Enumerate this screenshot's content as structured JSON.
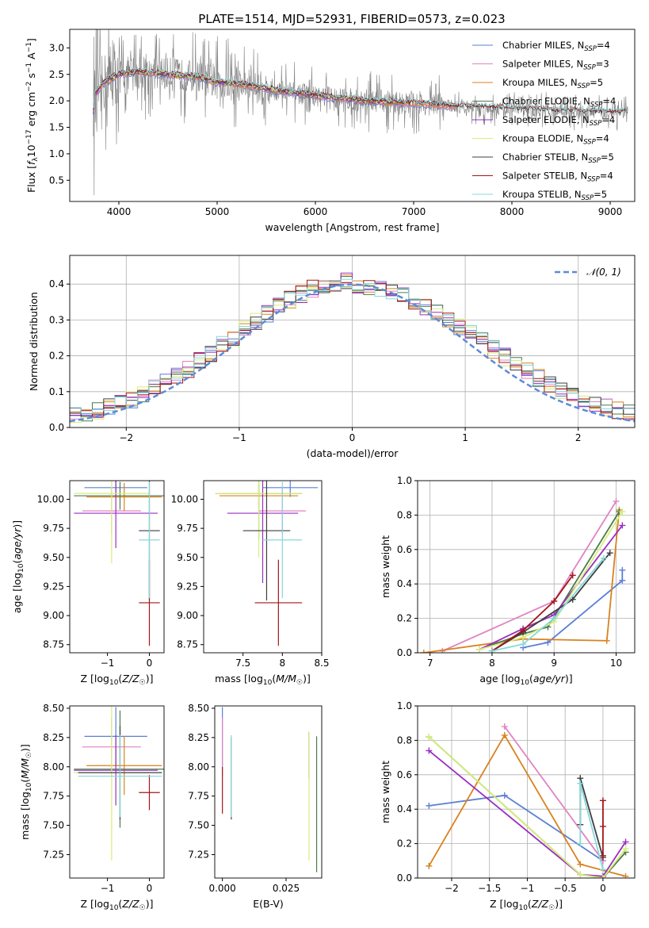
{
  "figure_title": "PLATE=1514, MJD=52931, FIBERID=0573, z=0.023",
  "colors": {
    "Chabrier MILES": "#5b7fd6",
    "Salpeter MILES": "#e083c0",
    "Kroupa MILES": "#d9821e",
    "Chabrier ELODIE": "#4c7a4c",
    "Salpeter ELODIE": "#9a2fc0",
    "Kroupa ELODIE": "#d7ee7a",
    "Chabrier STELIB": "#3f3f3f",
    "Salpeter STELIB": "#a4161a",
    "Kroupa STELIB": "#86d8da",
    "data": "#808080",
    "normal": "#5b8bd9"
  },
  "chart_data": [
    {
      "id": "spectrum",
      "type": "line",
      "title": "PLATE=1514, MJD=52931, FIBERID=0573, z=0.023",
      "xlabel": "wavelength [Angstrom, rest frame]",
      "ylabel": "Flux [f_λ 10^-17 erg cm^-2 s^-1 A^-1]",
      "xlim": [
        3500,
        9250
      ],
      "ylim": [
        0.1,
        3.35
      ],
      "xticks": [
        4000,
        5000,
        6000,
        7000,
        8000,
        9000
      ],
      "yticks": [
        0.5,
        1.0,
        1.5,
        2.0,
        2.5,
        3.0
      ],
      "grid": false,
      "legend_position": "top-right",
      "legend": [
        {
          "label": "Chabrier MILES, N",
          "sub": "SSP",
          "suffix": "=4"
        },
        {
          "label": "Salpeter MILES, N",
          "sub": "SSP",
          "suffix": "=3"
        },
        {
          "label": "Kroupa MILES, N",
          "sub": "SSP",
          "suffix": "=5"
        },
        {
          "label": "Chabrier ELODIE, N",
          "sub": "SSP",
          "suffix": "=4"
        },
        {
          "label": "Salpeter ELODIE, N",
          "sub": "SSP",
          "suffix": "=4"
        },
        {
          "label": "Kroupa ELODIE, N",
          "sub": "SSP",
          "suffix": "=4"
        },
        {
          "label": "Chabrier STELIB, N",
          "sub": "SSP",
          "suffix": "=5"
        },
        {
          "label": "Salpeter STELIB, N",
          "sub": "SSP",
          "suffix": "=4"
        },
        {
          "label": "Kroupa STELIB, N",
          "sub": "SSP",
          "suffix": "=5"
        }
      ],
      "model_continuum": [
        [
          3750,
          2.1
        ],
        [
          3850,
          2.35
        ],
        [
          4000,
          2.5
        ],
        [
          4200,
          2.55
        ],
        [
          4500,
          2.5
        ],
        [
          4800,
          2.45
        ],
        [
          5000,
          2.35
        ],
        [
          5300,
          2.3
        ],
        [
          5600,
          2.2
        ],
        [
          6000,
          2.1
        ],
        [
          6500,
          2.0
        ],
        [
          7000,
          1.95
        ],
        [
          7400,
          1.9
        ],
        [
          8000,
          1.85
        ],
        [
          8500,
          1.8
        ],
        [
          9000,
          1.78
        ]
      ]
    },
    {
      "id": "residuals",
      "type": "line",
      "xlabel": "(data-model)/error",
      "ylabel": "Normed distribution",
      "xlim": [
        -2.5,
        2.5
      ],
      "ylim": [
        0,
        0.48
      ],
      "xticks": [
        -2,
        -1,
        0,
        1,
        2
      ],
      "yticks": [
        0.0,
        0.1,
        0.2,
        0.3,
        0.4
      ],
      "grid": true,
      "legend_position": "top-right",
      "legend_label": "𝒩(0, 1)"
    },
    {
      "id": "age_vs_Z",
      "type": "scatter",
      "xlabel": "Z [log10(Z/Z☉)]",
      "ylabel": "age  [log10(age/yr)]",
      "xlim": [
        -1.9,
        0.35
      ],
      "ylim": [
        8.68,
        10.16
      ],
      "xticks": [
        -1,
        0
      ],
      "yticks": [
        8.75,
        9.0,
        9.25,
        9.5,
        9.75,
        10.0
      ],
      "grid": false,
      "points": [
        {
          "model": "Chabrier MILES",
          "x": -0.8,
          "xerr": 0.75,
          "y": 10.1,
          "yerr": 0.08
        },
        {
          "model": "Salpeter MILES",
          "x": -0.9,
          "xerr": 0.7,
          "y": 9.9,
          "yerr": 0.2
        },
        {
          "model": "Kroupa MILES",
          "x": -0.6,
          "xerr": 0.9,
          "y": 10.02,
          "yerr": 0.12
        },
        {
          "model": "Chabrier ELODIE",
          "x": -0.7,
          "xerr": 1.1,
          "y": 10.03,
          "yerr": 0.12
        },
        {
          "model": "Salpeter ELODIE",
          "x": -0.8,
          "xerr": 1.0,
          "y": 9.88,
          "yerr": 0.3
        },
        {
          "model": "Kroupa ELODIE",
          "x": -0.9,
          "xerr": 0.9,
          "y": 10.05,
          "yerr": 0.6
        },
        {
          "model": "Chabrier STELIB",
          "x": 0.0,
          "xerr": 0.25,
          "y": 9.73,
          "yerr": 0.6
        },
        {
          "model": "Salpeter STELIB",
          "x": 0.0,
          "xerr": 0.25,
          "y": 9.11,
          "yerr": 0.37
        },
        {
          "model": "Kroupa STELIB",
          "x": 0.0,
          "xerr": 0.25,
          "y": 9.65,
          "yerr": 0.5
        }
      ]
    },
    {
      "id": "age_vs_mass",
      "type": "scatter",
      "xlabel": "mass [log10(M/M☉)]",
      "ylabel": "",
      "xlim": [
        7.0,
        8.5
      ],
      "ylim": [
        8.68,
        10.16
      ],
      "xticks": [
        7.5,
        8.0,
        8.5
      ],
      "yticks": [
        8.75,
        9.0,
        9.25,
        9.5,
        9.75,
        10.0
      ],
      "grid": false,
      "points": [
        {
          "model": "Chabrier MILES",
          "x": 8.1,
          "xerr": 0.35,
          "y": 10.1,
          "yerr": 0.08
        },
        {
          "model": "Salpeter MILES",
          "x": 8.0,
          "xerr": 0.3,
          "y": 9.9,
          "yerr": 0.2
        },
        {
          "model": "Kroupa MILES",
          "x": 7.7,
          "xerr": 0.5,
          "y": 10.03,
          "yerr": 0.1
        },
        {
          "model": "Chabrier ELODIE",
          "x": 7.7,
          "xerr": 0.55,
          "y": 10.05,
          "yerr": 0.4
        },
        {
          "model": "Salpeter ELODIE",
          "x": 7.75,
          "xerr": 0.45,
          "y": 9.88,
          "yerr": 0.6
        },
        {
          "model": "Kroupa ELODIE",
          "x": 7.7,
          "xerr": 0.55,
          "y": 10.05,
          "yerr": 0.55
        },
        {
          "model": "Chabrier STELIB",
          "x": 7.8,
          "xerr": 0.3,
          "y": 9.73,
          "yerr": 0.6
        },
        {
          "model": "Salpeter STELIB",
          "x": 7.95,
          "xerr": 0.3,
          "y": 9.11,
          "yerr": 0.37
        },
        {
          "model": "Kroupa STELIB",
          "x": 8.0,
          "xerr": 0.25,
          "y": 9.65,
          "yerr": 0.5
        }
      ]
    },
    {
      "id": "weight_vs_age",
      "type": "line",
      "xlabel": "age  [log10(age/yr)]",
      "ylabel": "mass weight",
      "xlim": [
        6.8,
        10.3
      ],
      "ylim": [
        0,
        1.0
      ],
      "xticks": [
        7,
        8,
        9,
        10
      ],
      "yticks": [
        0.0,
        0.2,
        0.4,
        0.6,
        0.8,
        1.0
      ],
      "grid": true,
      "series": [
        {
          "model": "Chabrier MILES",
          "x": [
            8.5,
            8.9,
            10.1,
            10.1
          ],
          "y": [
            0.03,
            0.06,
            0.42,
            0.48
          ]
        },
        {
          "model": "Salpeter MILES",
          "x": [
            7.2,
            9.0,
            10.0
          ],
          "y": [
            0.01,
            0.3,
            0.88
          ]
        },
        {
          "model": "Kroupa MILES",
          "x": [
            6.9,
            8.5,
            9.85,
            10.05
          ],
          "y": [
            0.0,
            0.08,
            0.07,
            0.83
          ]
        },
        {
          "model": "Chabrier ELODIE",
          "x": [
            7.8,
            8.5,
            8.9,
            10.05
          ],
          "y": [
            0.02,
            0.11,
            0.15,
            0.82
          ]
        },
        {
          "model": "Salpeter ELODIE",
          "x": [
            7.8,
            8.5,
            9.0,
            10.1
          ],
          "y": [
            0.02,
            0.14,
            0.22,
            0.74
          ]
        },
        {
          "model": "Kroupa ELODIE",
          "x": [
            7.8,
            8.5,
            9.0,
            10.1
          ],
          "y": [
            0.02,
            0.09,
            0.18,
            0.82
          ]
        },
        {
          "model": "Chabrier STELIB",
          "x": [
            8.0,
            8.5,
            9.3,
            9.9
          ],
          "y": [
            0.01,
            0.12,
            0.31,
            0.58
          ]
        },
        {
          "model": "Salpeter STELIB",
          "x": [
            8.0,
            8.5,
            9.0,
            9.3
          ],
          "y": [
            0.01,
            0.13,
            0.3,
            0.45
          ]
        },
        {
          "model": "Kroupa STELIB",
          "x": [
            8.0,
            8.5,
            9.0,
            9.8
          ],
          "y": [
            0.01,
            0.05,
            0.2,
            0.55
          ]
        }
      ]
    },
    {
      "id": "mass_vs_Z",
      "type": "scatter",
      "xlabel": "Z [log10(Z/Z☉)]",
      "ylabel": "mass [log10(M/M☉)]",
      "xlim": [
        -1.9,
        0.35
      ],
      "ylim": [
        7.05,
        8.52
      ],
      "xticks": [
        -1,
        0
      ],
      "yticks": [
        7.25,
        7.5,
        7.75,
        8.0,
        8.25,
        8.5
      ],
      "grid": false,
      "points": [
        {
          "model": "Chabrier MILES",
          "x": -0.8,
          "xerr": 0.75,
          "y": 8.26,
          "yerr": 0.25
        },
        {
          "model": "Salpeter MILES",
          "x": -0.9,
          "xerr": 0.7,
          "y": 8.17,
          "yerr": 0.25
        },
        {
          "model": "Kroupa MILES",
          "x": -0.6,
          "xerr": 0.9,
          "y": 8.01,
          "yerr": 0.25
        },
        {
          "model": "Chabrier ELODIE",
          "x": -0.7,
          "xerr": 1.1,
          "y": 7.98,
          "yerr": 0.5
        },
        {
          "model": "Salpeter ELODIE",
          "x": -0.8,
          "xerr": 1.0,
          "y": 7.97,
          "yerr": 0.3
        },
        {
          "model": "Kroupa ELODIE",
          "x": -0.9,
          "xerr": 0.9,
          "y": 7.95,
          "yerr": 0.75
        },
        {
          "model": "Chabrier STELIB",
          "x": -0.7,
          "xerr": 1.0,
          "y": 7.95,
          "yerr": 0.4
        },
        {
          "model": "Salpeter STELIB",
          "x": 0.0,
          "xerr": 0.25,
          "y": 7.78,
          "yerr": 0.15
        },
        {
          "model": "Kroupa STELIB",
          "x": -0.7,
          "xerr": 1.0,
          "y": 7.92,
          "yerr": 0.35
        }
      ]
    },
    {
      "id": "mass_vs_ebv",
      "type": "scatter",
      "xlabel": "E(B-V)",
      "ylabel": "",
      "xlim": [
        -0.003,
        0.039
      ],
      "ylim": [
        7.05,
        8.52
      ],
      "xticks": [
        0.0,
        0.025
      ],
      "xticklabels": [
        "0.000",
        "0.025"
      ],
      "yticks": [
        7.25,
        7.5,
        7.75,
        8.0,
        8.25,
        8.5
      ],
      "grid": false,
      "points": [
        {
          "model": "Chabrier MILES",
          "x": 0.0,
          "y": 8.26,
          "yerr": 0.25
        },
        {
          "model": "Salpeter MILES",
          "x": 0.0,
          "y": 8.17,
          "yerr": 0.25
        },
        {
          "model": "Salpeter STELIB",
          "x": 0.0,
          "y": 7.8,
          "yerr": 0.2
        },
        {
          "model": "Chabrier STELIB",
          "x": 0.0035,
          "y": 7.9,
          "yerr": 0.35
        },
        {
          "model": "Kroupa STELIB",
          "x": 0.0035,
          "y": 7.92,
          "yerr": 0.35
        },
        {
          "model": "Salpeter ELODIE",
          "x": 0.034,
          "y": 8.1,
          "yerr": 0.2
        },
        {
          "model": "Kroupa ELODIE",
          "x": 0.034,
          "y": 7.75,
          "yerr": 0.55
        },
        {
          "model": "Chabrier ELODIE",
          "x": 0.037,
          "y": 7.68,
          "yerr": 0.58
        }
      ]
    },
    {
      "id": "weight_vs_Z",
      "type": "line",
      "xlabel": "Z [log10(Z/Z☉)]",
      "ylabel": "mass weight",
      "xlim": [
        -2.45,
        0.42
      ],
      "ylim": [
        0,
        1.0
      ],
      "xticks": [
        -2.0,
        -1.5,
        -1.0,
        -0.5,
        0.0
      ],
      "yticks": [
        0.0,
        0.2,
        0.4,
        0.6,
        0.8,
        1.0
      ],
      "grid": true,
      "series": [
        {
          "model": "Chabrier MILES",
          "x": [
            -2.3,
            -1.3,
            0.0
          ],
          "y": [
            0.42,
            0.48,
            0.1
          ]
        },
        {
          "model": "Salpeter MILES",
          "x": [
            -1.3,
            0.0
          ],
          "y": [
            0.88,
            0.1
          ]
        },
        {
          "model": "Kroupa MILES",
          "x": [
            -2.3,
            -1.3,
            -0.3,
            0.3
          ],
          "y": [
            0.07,
            0.83,
            0.08,
            0.01
          ]
        },
        {
          "model": "Chabrier ELODIE",
          "x": [
            -2.3,
            -0.3,
            0.0,
            0.3
          ],
          "y": [
            0.82,
            0.02,
            0.0,
            0.15
          ]
        },
        {
          "model": "Salpeter ELODIE",
          "x": [
            -2.3,
            -0.3,
            0.0,
            0.3
          ],
          "y": [
            0.74,
            0.02,
            0.01,
            0.21
          ]
        },
        {
          "model": "Kroupa ELODIE",
          "x": [
            -2.3,
            -0.3,
            0.0,
            0.3
          ],
          "y": [
            0.82,
            0.02,
            0.0,
            0.17
          ]
        },
        {
          "model": "Chabrier STELIB",
          "x": [
            -0.3,
            -0.3,
            0.0
          ],
          "y": [
            0.31,
            0.58,
            0.12
          ]
        },
        {
          "model": "Salpeter STELIB",
          "x": [
            0.0,
            0.0,
            0.0
          ],
          "y": [
            0.13,
            0.3,
            0.45
          ]
        },
        {
          "model": "Kroupa STELIB",
          "x": [
            -0.3,
            -0.3,
            0.0
          ],
          "y": [
            0.2,
            0.55,
            0.05
          ]
        }
      ]
    }
  ]
}
